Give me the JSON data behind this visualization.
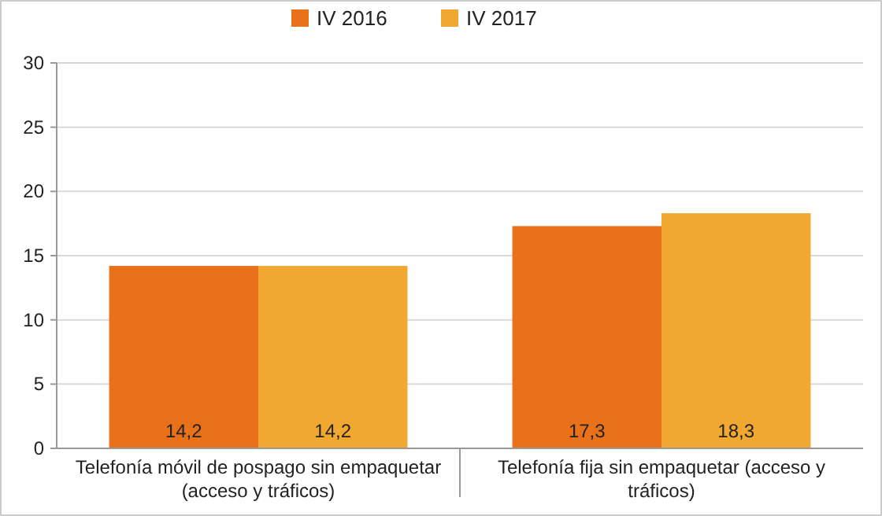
{
  "chart_data": {
    "type": "bar",
    "categories": [
      "Telefonía móvil de pospago sin empaquetar (acceso y tráficos)",
      "Telefonía fija sin empaquetar (acceso y tráficos)"
    ],
    "series": [
      {
        "name": "IV 2016",
        "color": "#e8711a",
        "values": [
          14.2,
          17.3
        ],
        "value_labels": [
          "14,2",
          "17,3"
        ]
      },
      {
        "name": "IV 2017",
        "color": "#f0a830",
        "values": [
          14.2,
          18.3
        ],
        "value_labels": [
          "14,2",
          "18,3"
        ]
      }
    ],
    "ylim": [
      0,
      30
    ],
    "yticks": [
      0,
      5,
      10,
      15,
      20,
      25,
      30
    ],
    "grid": "y",
    "legend": "top"
  }
}
